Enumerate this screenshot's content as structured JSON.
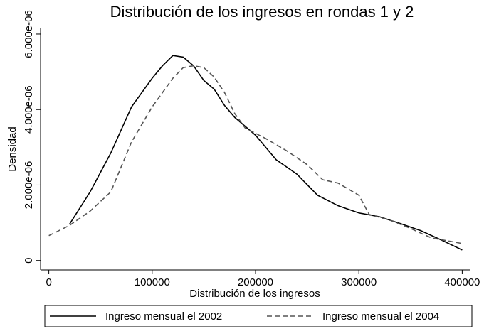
{
  "chart_data": {
    "type": "line",
    "title": "Distribución de los ingresos en rondas 1 y 2",
    "x_label": "Distribución de los ingresos",
    "y_label": "Densidad",
    "xlim": [
      -8000,
      408000
    ],
    "ylim": [
      -2.5e-07,
      6.15e-06
    ],
    "xticks": [
      0,
      100000,
      200000,
      300000,
      400000
    ],
    "yticks": [
      0,
      {
        "value": 2e-06,
        "label": "2.000e-06"
      },
      {
        "value": 4e-06,
        "label": "4.000e-06"
      },
      {
        "value": 6e-06,
        "label": "6.000e-06"
      }
    ],
    "legend": "bottom",
    "series": [
      {
        "name": "Ingreso mensual el 2002",
        "color": "#000000",
        "dash": "solid",
        "x": [
          20000,
          40000,
          60000,
          80000,
          100000,
          110000,
          120000,
          130000,
          140000,
          150000,
          160000,
          170000,
          180000,
          200000,
          220000,
          240000,
          260000,
          280000,
          300000,
          320000,
          340000,
          360000,
          380000,
          400000
        ],
        "values": [
          9.6e-07,
          1.82e-06,
          2.85e-06,
          4.07e-06,
          4.83e-06,
          5.16e-06,
          5.43e-06,
          5.39e-06,
          5.16e-06,
          4.77e-06,
          4.54e-06,
          4.11e-06,
          3.79e-06,
          3.32e-06,
          2.67e-06,
          2.29e-06,
          1.73e-06,
          1.45e-06,
          1.26e-06,
          1.16e-06,
          9.8e-07,
          7.9e-07,
          5.4e-07,
          2.8e-07
        ]
      },
      {
        "name": "Ingreso mensual el 2004",
        "color": "#555555",
        "dash": "dashed",
        "x": [
          0,
          20000,
          40000,
          60000,
          80000,
          100000,
          120000,
          130000,
          140000,
          150000,
          160000,
          170000,
          180000,
          190000,
          210000,
          230000,
          250000,
          265000,
          280000,
          300000,
          310000,
          330000,
          350000,
          370000,
          400000
        ],
        "values": [
          6.6e-07,
          9.3e-07,
          1.31e-06,
          1.82e-06,
          3.14e-06,
          4.07e-06,
          4.83e-06,
          5.11e-06,
          5.16e-06,
          5.11e-06,
          4.86e-06,
          4.45e-06,
          3.89e-06,
          3.51e-06,
          3.23e-06,
          2.91e-06,
          2.54e-06,
          2.14e-06,
          2.05e-06,
          1.73e-06,
          1.22e-06,
          1.07e-06,
          8.5e-07,
          6e-07,
          4.5e-07
        ]
      }
    ]
  }
}
